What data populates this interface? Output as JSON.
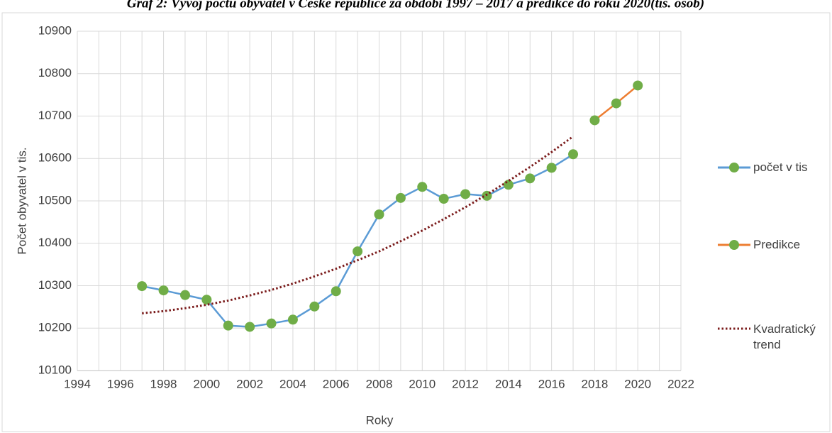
{
  "chart_data": {
    "type": "line",
    "title": "Graf 2: Vývoj počtu obyvatel v České republice za období 1997 – 2017 a predikce do roku 2020(tis. osob)",
    "x_label": "Roky",
    "y_label": "Počet obyvatel v tis.",
    "xlim": [
      1994,
      2022
    ],
    "xticks": [
      1994,
      1996,
      1998,
      2000,
      2002,
      2004,
      2006,
      2008,
      2010,
      2012,
      2014,
      2016,
      2018,
      2020,
      2022
    ],
    "ylim": [
      10100,
      10900
    ],
    "yticks": [
      10100,
      10200,
      10300,
      10400,
      10500,
      10600,
      10700,
      10800,
      10900
    ],
    "grid": true,
    "series": [
      {
        "name": "počet v tis",
        "color": "#5b9bd5",
        "marker_color": "#70ad47",
        "x": [
          1997,
          1998,
          1999,
          2000,
          2001,
          2002,
          2003,
          2004,
          2005,
          2006,
          2007,
          2008,
          2009,
          2010,
          2011,
          2012,
          2013,
          2014,
          2015,
          2016,
          2017
        ],
        "values": [
          10299,
          10289,
          10278,
          10267,
          10206,
          10203,
          10211,
          10220,
          10251,
          10287,
          10381,
          10468,
          10507,
          10533,
          10505,
          10516,
          10512,
          10538,
          10553,
          10578,
          10610
        ]
      },
      {
        "name": "Predikce",
        "color": "#ed7d31",
        "marker_color": "#70ad47",
        "x": [
          2018,
          2019,
          2020
        ],
        "values": [
          10690,
          10730,
          10772
        ]
      },
      {
        "name": "Kvadratický trend",
        "color": "#7b1c1c",
        "style": "dotted",
        "x": [
          1997,
          1998,
          1999,
          2000,
          2001,
          2002,
          2003,
          2004,
          2005,
          2006,
          2007,
          2008,
          2009,
          2010,
          2011,
          2012,
          2013,
          2014,
          2015,
          2016,
          2017
        ],
        "values": [
          10235,
          10240,
          10247,
          10255,
          10265,
          10277,
          10290,
          10305,
          10322,
          10340,
          10360,
          10381,
          10405,
          10430,
          10457,
          10485,
          10515,
          10547,
          10580,
          10615,
          10652
        ]
      }
    ]
  }
}
